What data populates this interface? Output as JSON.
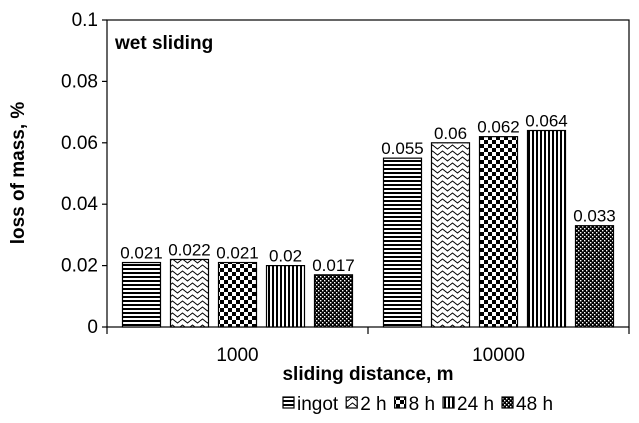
{
  "chart_data": {
    "type": "bar",
    "categories": [
      "1000",
      "10000"
    ],
    "series": [
      {
        "name": "ingot",
        "values": [
          0.021,
          0.055
        ],
        "labels": [
          "0.021",
          "0.055"
        ],
        "pattern": "hlines"
      },
      {
        "name": "2 h",
        "values": [
          0.022,
          0.06
        ],
        "labels": [
          "0.022",
          "0.06"
        ],
        "pattern": "waves"
      },
      {
        "name": "8 h",
        "values": [
          0.021,
          0.062
        ],
        "labels": [
          "0.021",
          "0.062"
        ],
        "pattern": "checker"
      },
      {
        "name": "24 h",
        "values": [
          0.02,
          0.064
        ],
        "labels": [
          "0.02",
          "0.064"
        ],
        "pattern": "vlines"
      },
      {
        "name": "48 h",
        "values": [
          0.017,
          0.033
        ],
        "labels": [
          "0.017",
          "0.033"
        ],
        "pattern": "dense"
      }
    ],
    "annotation": "wet sliding",
    "xlabel": "sliding distance, m",
    "ylabel": "loss of mass, %",
    "ylim": [
      0,
      0.1
    ],
    "yticks": [
      "0",
      "0.02",
      "0.04",
      "0.06",
      "0.08",
      "0.1"
    ],
    "grid": false,
    "legend_position": "bottom-right"
  }
}
